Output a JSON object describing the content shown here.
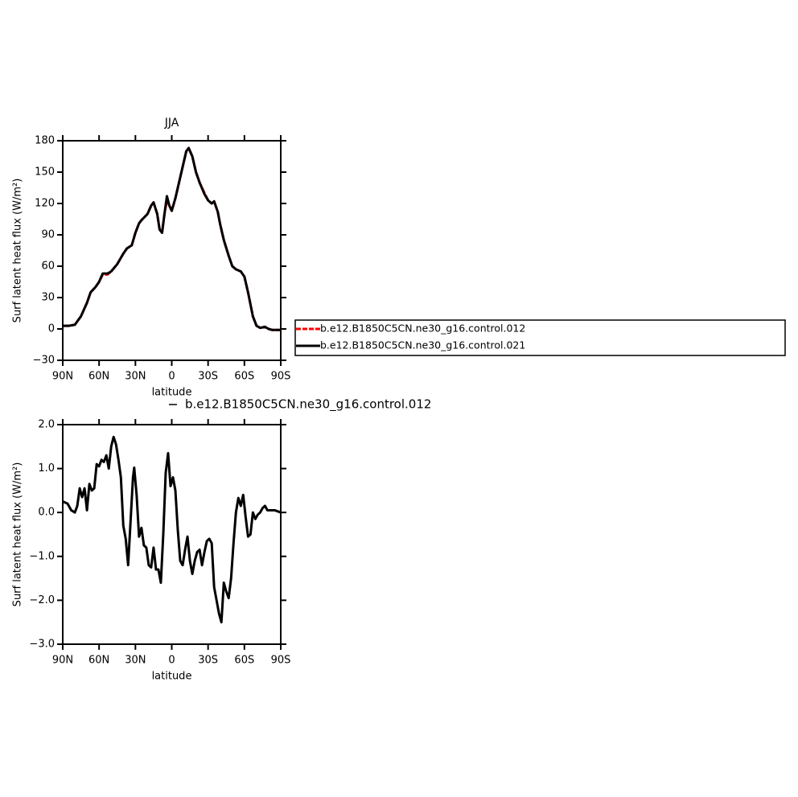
{
  "chart_data": [
    {
      "type": "line",
      "title": "JJA",
      "x_label": "latitude",
      "y_label": "Surf latent heat flux (W/m²)",
      "x": [
        90,
        85,
        80,
        75,
        70,
        67,
        63,
        60,
        57,
        53,
        50,
        45,
        40,
        37,
        33,
        30,
        27,
        25,
        20,
        17,
        15,
        12,
        10,
        8,
        6,
        4,
        2,
        0,
        -3,
        -6,
        -9,
        -12,
        -14,
        -17,
        -20,
        -23,
        -27,
        -30,
        -33,
        -35,
        -38,
        -40,
        -43,
        -47,
        -50,
        -53,
        -57,
        -60,
        -63,
        -67,
        -70,
        -73,
        -77,
        -80,
        -83,
        -87,
        -90
      ],
      "series": [
        {
          "name": "b.e12.B1850C5CN.ne30_g16.control.012",
          "color": "#ff0000",
          "line_style": "dashed",
          "values": [
            3,
            3,
            4,
            12,
            25,
            35,
            40,
            45,
            52,
            52,
            55,
            62,
            72,
            77,
            80,
            92,
            101,
            104,
            110,
            118,
            121,
            110,
            95,
            92,
            110,
            123,
            118,
            113,
            125,
            140,
            155,
            170,
            173,
            165,
            150,
            140,
            130,
            123,
            120,
            122,
            112,
            100,
            85,
            70,
            60,
            57,
            55,
            50,
            35,
            12,
            3,
            1,
            2,
            0,
            -1,
            -1,
            -1
          ]
        },
        {
          "name": "b.e12.B1850C5CN.ne30_g16.control.021",
          "color": "#000000",
          "line_style": "solid",
          "values": [
            3,
            3,
            4,
            12,
            25,
            35,
            40,
            45,
            53,
            53,
            55,
            62,
            72,
            77,
            80,
            92,
            101,
            104,
            110,
            118,
            121,
            110,
            95,
            92,
            110,
            127,
            118,
            113,
            125,
            140,
            155,
            170,
            173,
            165,
            150,
            140,
            129,
            123,
            120,
            122,
            112,
            100,
            85,
            70,
            60,
            57,
            55,
            50,
            35,
            12,
            3,
            1,
            2,
            0,
            -1,
            -1,
            -1
          ]
        }
      ],
      "xlim": [
        90,
        -90
      ],
      "xticks": [
        {
          "value": 90,
          "label": "90N"
        },
        {
          "value": 60,
          "label": "60N"
        },
        {
          "value": 30,
          "label": "30N"
        },
        0,
        {
          "value": -30,
          "label": "30S"
        },
        {
          "value": -60,
          "label": "60S"
        },
        {
          "value": -90,
          "label": "90S"
        }
      ],
      "ylim": [
        -30,
        180
      ],
      "yticks": [
        {
          "value": -30,
          "label": "−30"
        },
        0,
        30,
        60,
        90,
        120,
        150,
        180
      ],
      "legend": "right"
    },
    {
      "type": "line",
      "x_label": "latitude",
      "y_label": "Surf latent heat flux (W/m²)",
      "x": [
        90,
        86,
        83,
        80,
        78,
        76,
        74,
        72,
        70,
        68,
        66,
        64,
        62,
        60,
        58,
        56,
        54,
        52,
        50,
        48,
        46,
        44,
        42,
        40,
        38,
        36,
        34,
        32,
        31,
        29,
        27,
        25,
        23,
        21,
        19,
        17,
        15,
        13,
        11,
        9,
        7,
        5,
        3,
        1,
        -1,
        -3,
        -5,
        -7,
        -9,
        -11,
        -13,
        -15,
        -17,
        -19,
        -21,
        -23,
        -25,
        -27,
        -29,
        -31,
        -33,
        -35,
        -37,
        -39,
        -41,
        -43,
        -45,
        -47,
        -49,
        -51,
        -53,
        -55,
        -57,
        -59,
        -61,
        -63,
        -65,
        -67,
        -69,
        -71,
        -73,
        -75,
        -77,
        -79,
        -82,
        -85,
        -90
      ],
      "series": [
        {
          "name": "b.e12.B1850C5CN.ne30_g16.control.012",
          "color": "#000000",
          "line_style": "solid",
          "values": [
            0.25,
            0.2,
            0.05,
            0.0,
            0.15,
            0.55,
            0.35,
            0.55,
            0.05,
            0.65,
            0.5,
            0.55,
            1.1,
            1.05,
            1.2,
            1.15,
            1.3,
            1.0,
            1.5,
            1.72,
            1.55,
            1.2,
            0.8,
            -0.3,
            -0.6,
            -1.2,
            -0.2,
            0.8,
            1.02,
            0.4,
            -0.55,
            -0.35,
            -0.75,
            -0.8,
            -1.2,
            -1.25,
            -0.8,
            -1.3,
            -1.3,
            -1.6,
            -0.5,
            0.9,
            1.35,
            0.6,
            0.8,
            0.5,
            -0.4,
            -1.1,
            -1.2,
            -0.85,
            -0.55,
            -1.1,
            -1.4,
            -1.1,
            -0.9,
            -0.85,
            -1.2,
            -0.9,
            -0.65,
            -0.6,
            -0.7,
            -1.7,
            -2.0,
            -2.3,
            -2.5,
            -1.6,
            -1.8,
            -1.95,
            -1.5,
            -0.7,
            0.0,
            0.33,
            0.15,
            0.4,
            -0.1,
            -0.55,
            -0.5,
            0.0,
            -0.15,
            -0.05,
            0.0,
            0.1,
            0.15,
            0.05,
            0.05,
            0.05,
            0.0
          ]
        }
      ],
      "xlim": [
        90,
        -90
      ],
      "xticks": [
        {
          "value": 90,
          "label": "90N"
        },
        {
          "value": 60,
          "label": "60N"
        },
        {
          "value": 30,
          "label": "30N"
        },
        0,
        {
          "value": -30,
          "label": "30S"
        },
        {
          "value": -60,
          "label": "60S"
        },
        {
          "value": -90,
          "label": "90S"
        }
      ],
      "ylim": [
        -3,
        2
      ],
      "yticks": [
        {
          "value": -3,
          "label": "−3.0"
        },
        {
          "value": -2,
          "label": "−2.0"
        },
        {
          "value": -1,
          "label": "−1.0"
        },
        {
          "value": 0,
          "label": "0.0"
        },
        {
          "value": 1,
          "label": "1.0"
        },
        {
          "value": 2,
          "label": "2.0"
        }
      ],
      "legend": "top"
    }
  ]
}
